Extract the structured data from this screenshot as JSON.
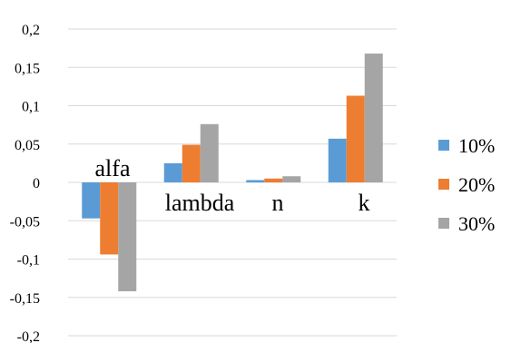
{
  "chart_data": {
    "type": "bar",
    "categories": [
      "alfa",
      "lambda",
      "n",
      "k"
    ],
    "series": [
      {
        "name": "10%",
        "color": "#5b9bd5",
        "values": [
          -0.047,
          0.025,
          0.003,
          0.057
        ]
      },
      {
        "name": "20%",
        "color": "#ed7d31",
        "values": [
          -0.094,
          0.049,
          0.005,
          0.113
        ]
      },
      {
        "name": "30%",
        "color": "#a5a5a5",
        "values": [
          -0.142,
          0.076,
          0.008,
          0.168
        ]
      }
    ],
    "yticks": [
      {
        "value": 0.2,
        "label": "0,2"
      },
      {
        "value": 0.15,
        "label": "0,15"
      },
      {
        "value": 0.1,
        "label": "0,1"
      },
      {
        "value": 0.05,
        "label": "0,05"
      },
      {
        "value": 0,
        "label": "0"
      },
      {
        "value": -0.05,
        "label": "-0,05"
      },
      {
        "value": -0.1,
        "label": "-0,1"
      },
      {
        "value": -0.15,
        "label": "-0,15"
      },
      {
        "value": -0.2,
        "label": "-0,2"
      }
    ],
    "ylim": [
      -0.2,
      0.2
    ],
    "grid": true,
    "legend_position": "right",
    "title": "",
    "xlabel": "",
    "ylabel": ""
  }
}
